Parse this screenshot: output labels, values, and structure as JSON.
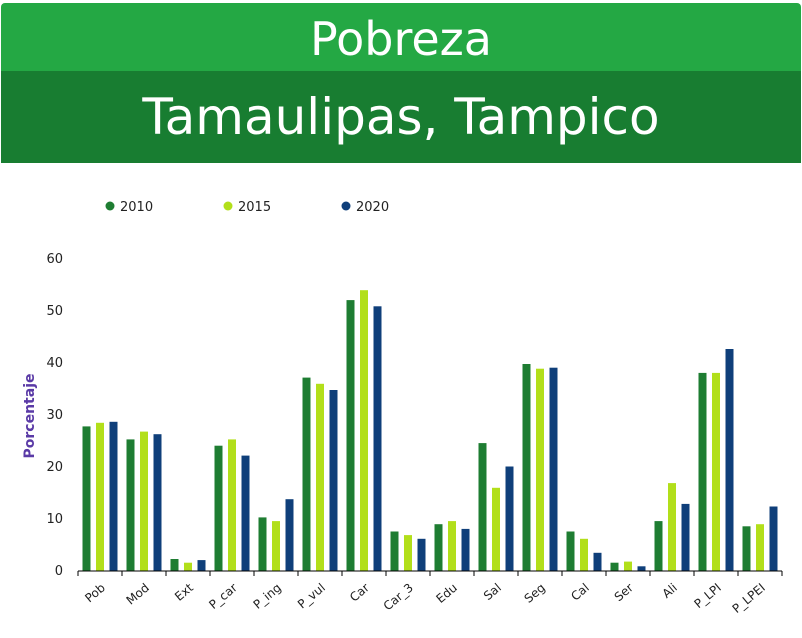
{
  "header": {
    "title": "Pobreza",
    "subtitle": "Tamaulipas, Tampico"
  },
  "colors": {
    "header_top": "#24a844",
    "header_bottom": "#187d31",
    "s2010": "#1e7d32",
    "s2015": "#b2df1a",
    "s2020": "#0f3f7a",
    "ylabel": "#5a3aa6"
  },
  "chart_data": {
    "type": "bar",
    "title": "",
    "xlabel": "",
    "ylabel": "Porcentaje",
    "ylim": [
      0,
      60
    ],
    "yticks": [
      0,
      10,
      20,
      30,
      40,
      50,
      60
    ],
    "grid": false,
    "legend_position": "top-left",
    "categories": [
      "Pob",
      "Mod",
      "Ext",
      "P_car",
      "P_ing",
      "P_vul",
      "Car",
      "Car_3",
      "Edu",
      "Sal",
      "Seg",
      "Cal",
      "Ser",
      "Ali",
      "P_LPI",
      "P_LPEI"
    ],
    "series": [
      {
        "name": "2010",
        "values": [
          27.8,
          25.3,
          2.3,
          24.1,
          10.3,
          37.2,
          52.1,
          7.6,
          9.0,
          24.6,
          39.8,
          7.6,
          1.6,
          9.6,
          38.1,
          8.6
        ]
      },
      {
        "name": "2015",
        "values": [
          28.5,
          26.8,
          1.6,
          25.3,
          9.6,
          36.0,
          54.0,
          6.9,
          9.6,
          16.0,
          38.9,
          6.2,
          1.8,
          16.9,
          38.1,
          9.0
        ]
      },
      {
        "name": "2020",
        "values": [
          28.7,
          26.3,
          2.1,
          22.2,
          13.8,
          34.8,
          50.9,
          6.2,
          8.1,
          20.1,
          39.1,
          3.5,
          0.9,
          12.9,
          42.7,
          12.4
        ]
      }
    ]
  }
}
